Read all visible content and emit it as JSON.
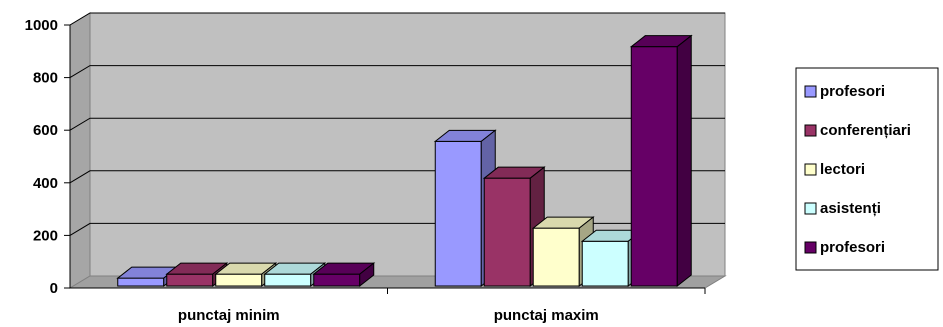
{
  "chart_data": {
    "type": "bar",
    "title": "",
    "xlabel": "",
    "ylabel": "",
    "ylim": [
      0,
      1000
    ],
    "y_ticks": [
      0,
      200,
      400,
      600,
      800,
      1000
    ],
    "grid": true,
    "three_d": true,
    "legend_position": "right",
    "categories": [
      "punctaj minim",
      "punctaj maxim"
    ],
    "series": [
      {
        "name": "profesori",
        "color": "#9999ff",
        "values": [
          30,
          550
        ]
      },
      {
        "name": "conferențiari",
        "color": "#993366",
        "values": [
          45,
          410
        ]
      },
      {
        "name": "lectori",
        "color": "#ffffcc",
        "values": [
          45,
          220
        ]
      },
      {
        "name": "asistenți",
        "color": "#ccffff",
        "values": [
          45,
          170
        ]
      },
      {
        "name": "profesori",
        "color": "#660066",
        "values": [
          45,
          910
        ]
      }
    ]
  }
}
